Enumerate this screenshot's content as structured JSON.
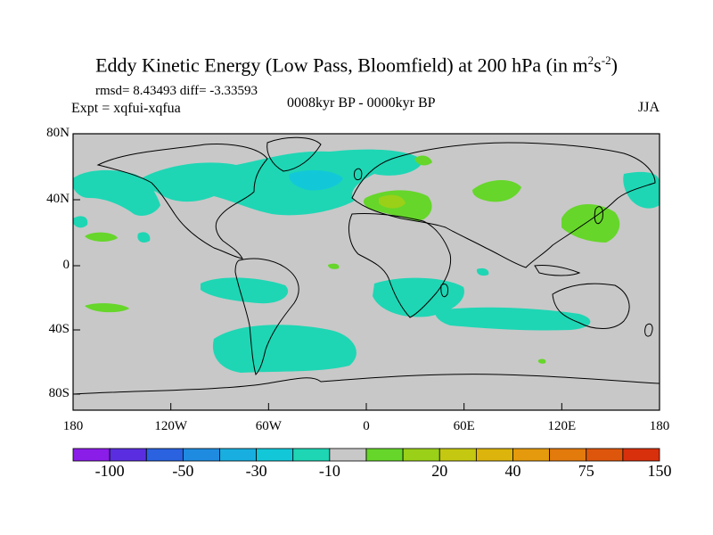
{
  "title": "Eddy Kinetic Energy (Low Pass, Bloomfield) at 200 hPa (in m",
  "title_sup1": "2",
  "title_mid": "s",
  "title_sup2": "-2",
  "title_end": ")",
  "rmsd_line": "rmsd= 8.43493 diff= -3.33593",
  "expt_line": "Expt = xqfui-xqfua",
  "period": "0008kyr BP - 0000kyr BP",
  "season": "JJA",
  "lat_labels": [
    "80N",
    "40N",
    "0",
    "40S",
    "80S"
  ],
  "lon_labels": [
    "180",
    "120W",
    "60W",
    "0",
    "60E",
    "120E",
    "180"
  ],
  "colorbar": {
    "colors": [
      "#8a1de8",
      "#5a2ee0",
      "#2a62e0",
      "#1e8be0",
      "#18aee0",
      "#12c8d8",
      "#1ed6b4",
      "#c8c8c8",
      "#66d62a",
      "#9ad018",
      "#c4c810",
      "#dcb40c",
      "#e49a0c",
      "#e27a0c",
      "#de560c",
      "#d8300c"
    ],
    "labels": [
      "-100",
      "-50",
      "-30",
      "-10",
      "20",
      "40",
      "75",
      "150"
    ]
  },
  "palette": {
    "background": "#c8c8c8",
    "neg_light": "#1ed6b4",
    "neg_mid": "#12c8d8",
    "pos_light": "#66d62a",
    "pos_mid": "#9ad018",
    "coast": "#000000"
  }
}
